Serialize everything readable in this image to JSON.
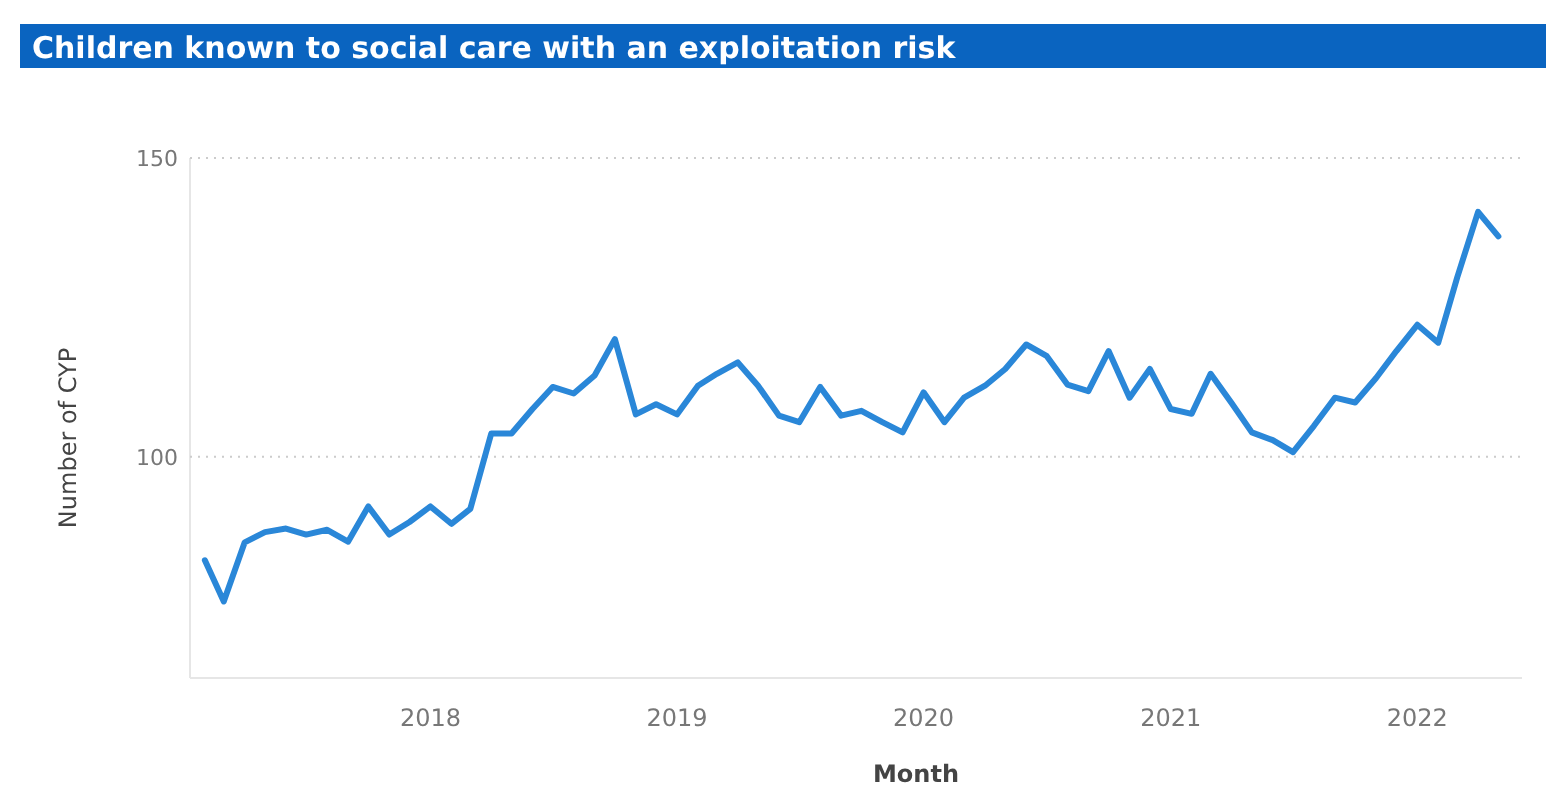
{
  "chart_data": {
    "type": "line",
    "title": "Children known to social care with an exploitation risk",
    "xlabel": "Month",
    "ylabel": "Number of CYP",
    "x": [
      "2017-02",
      "2017-03",
      "2017-04",
      "2017-05",
      "2017-06",
      "2017-07",
      "2017-08",
      "2017-09",
      "2017-10",
      "2017-11",
      "2017-12",
      "2018-01",
      "2018-02",
      "2018-03",
      "2018-04",
      "2018-05",
      "2018-06",
      "2018-07",
      "2018-08",
      "2018-09",
      "2018-10",
      "2018-11",
      "2018-12",
      "2019-01",
      "2019-02",
      "2019-03",
      "2019-04",
      "2019-05",
      "2019-06",
      "2019-07",
      "2019-08",
      "2019-09",
      "2019-10",
      "2019-11",
      "2019-12",
      "2020-01",
      "2020-02",
      "2020-03",
      "2020-04",
      "2020-05",
      "2020-06",
      "2020-07",
      "2020-08",
      "2020-09",
      "2020-10",
      "2020-11",
      "2020-12",
      "2021-01",
      "2021-02",
      "2021-03",
      "2021-04",
      "2021-05",
      "2021-06",
      "2021-07",
      "2021-08",
      "2021-09",
      "2021-10",
      "2021-11",
      "2021-12",
      "2022-01",
      "2022-02",
      "2022-03",
      "2022-04",
      "2022-05"
    ],
    "series": [
      {
        "color": "#2a87d8",
        "values": [
          82.7,
          75.8,
          85.7,
          87.4,
          88,
          87,
          87.8,
          85.8,
          91.7,
          87,
          89.1,
          91.7,
          88.8,
          91.3,
          103.9,
          103.9,
          108,
          111.7,
          110.6,
          113.6,
          119.7,
          107.1,
          108.8,
          107.1,
          111.9,
          113.9,
          115.8,
          111.9,
          106.9,
          105.8,
          111.7,
          106.9,
          107.7,
          105.8,
          104.1,
          110.8,
          105.8,
          109.9,
          111.9,
          114.7,
          118.8,
          116.9,
          112.1,
          111,
          117.7,
          109.9,
          114.7,
          108,
          107.2,
          113.9,
          109,
          104.1,
          102.8,
          100.8,
          105.2,
          109.9,
          109.1,
          113.2,
          117.7,
          122.1,
          119.1,
          130,
          141,
          136.9
        ]
      }
    ],
    "xlim": [
      "2017-01-10",
      "2022-06-05"
    ],
    "ylim": [
      63,
      150
    ],
    "yticks": [
      100,
      150
    ],
    "xticks": [
      "2018",
      "2019",
      "2020",
      "2021",
      "2022"
    ],
    "grid": "y",
    "marker": "none",
    "line_style": "solid"
  }
}
